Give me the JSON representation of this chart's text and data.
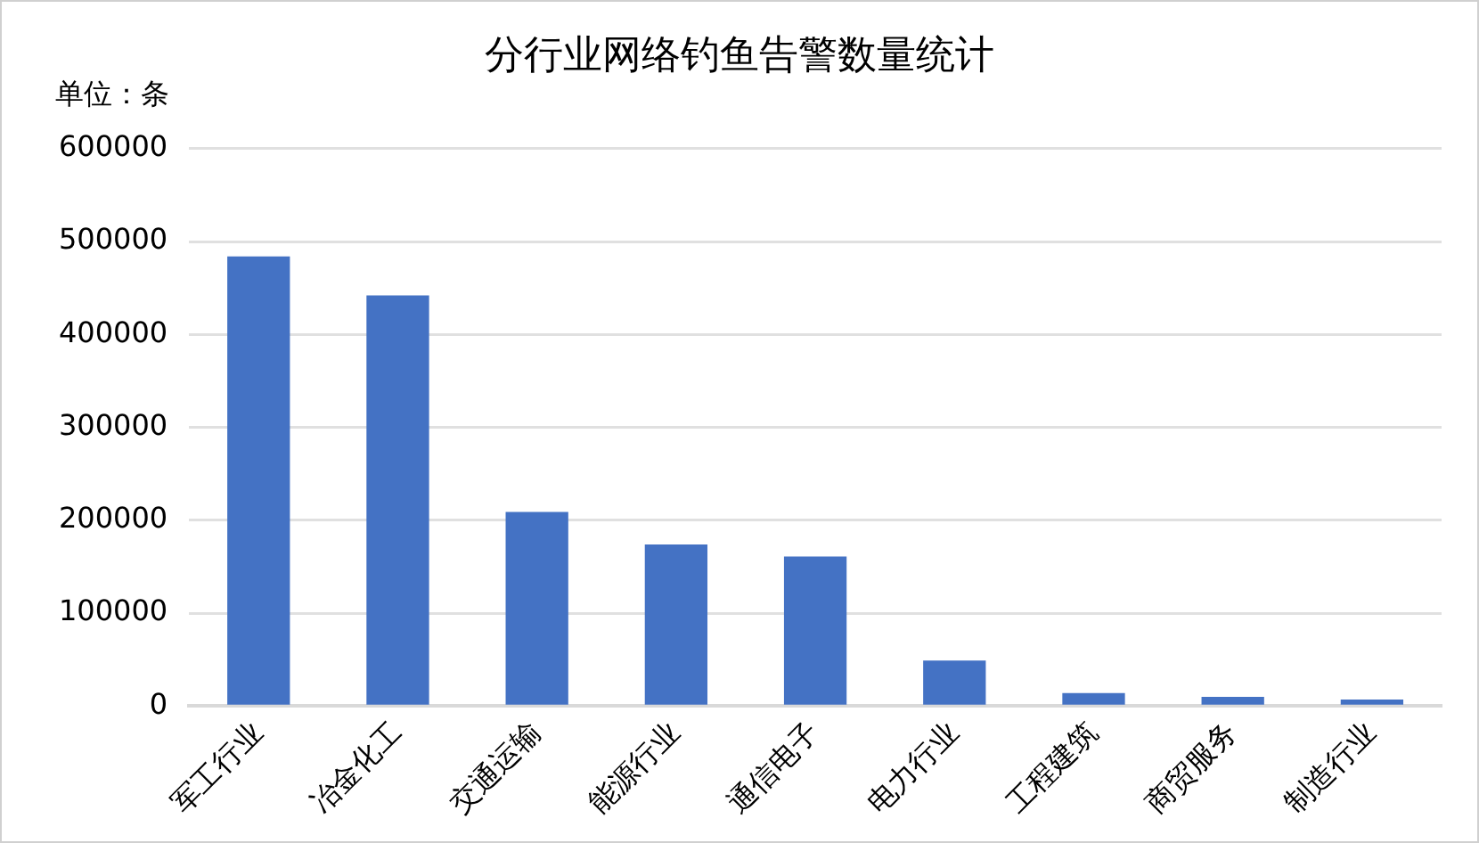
{
  "chart_data": {
    "type": "bar",
    "title": "分行业网络钓鱼告警数量统计",
    "ylabel": "单位：条",
    "categories": [
      "军工行业",
      "冶金化工",
      "交通运输",
      "能源行业",
      "通信电子",
      "电力行业",
      "工程建筑",
      "商贸服务",
      "制造行业"
    ],
    "values": [
      484000,
      442000,
      209000,
      174000,
      161000,
      49000,
      14000,
      10000,
      7000
    ],
    "color": "#4472c4",
    "ylim": [
      0,
      600000
    ],
    "yticks": [
      0,
      100000,
      200000,
      300000,
      400000,
      500000,
      600000
    ],
    "grid": "y",
    "legend": false
  }
}
